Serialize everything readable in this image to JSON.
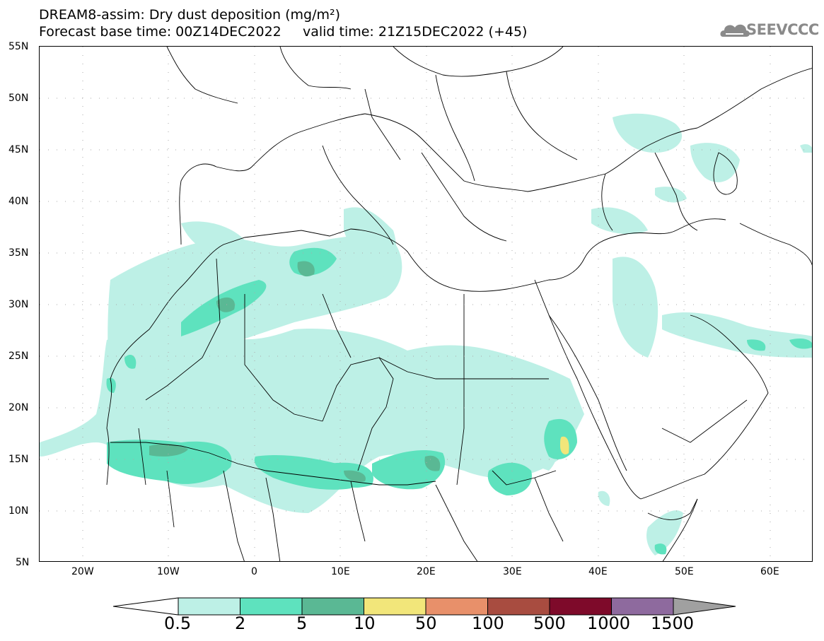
{
  "header": {
    "title_line1": "DREAM8-assim: Dry dust deposition (mg/m²)",
    "title_line2": "Forecast base time: 00Z14DEC2022     valid time: 21Z15DEC2022 (+45)"
  },
  "logo": {
    "text": "SEEVCCC",
    "icon": "cloud-logo-icon"
  },
  "axes": {
    "lat_labels": [
      "55N",
      "50N",
      "45N",
      "40N",
      "35N",
      "30N",
      "25N",
      "20N",
      "15N",
      "10N",
      "5N"
    ],
    "lon_labels": [
      "20W",
      "10W",
      "0",
      "10E",
      "20E",
      "30E",
      "40E",
      "50E",
      "60E"
    ]
  },
  "colorbar": {
    "levels": [
      "0.5",
      "2",
      "5",
      "10",
      "50",
      "100",
      "500",
      "1000",
      "1500"
    ],
    "colors": [
      "#ffffff",
      "#bdf0e6",
      "#5ee2be",
      "#5ab894",
      "#f2e67a",
      "#e8906a",
      "#a84c40",
      "#7e0a2a",
      "#8e6a9e",
      "#a0a0a0"
    ]
  },
  "map": {
    "domain": {
      "lon_min": -25,
      "lon_max": 65,
      "lat_min": 5,
      "lat_max": 55
    },
    "region": "North Africa, Middle East and Europe"
  }
}
